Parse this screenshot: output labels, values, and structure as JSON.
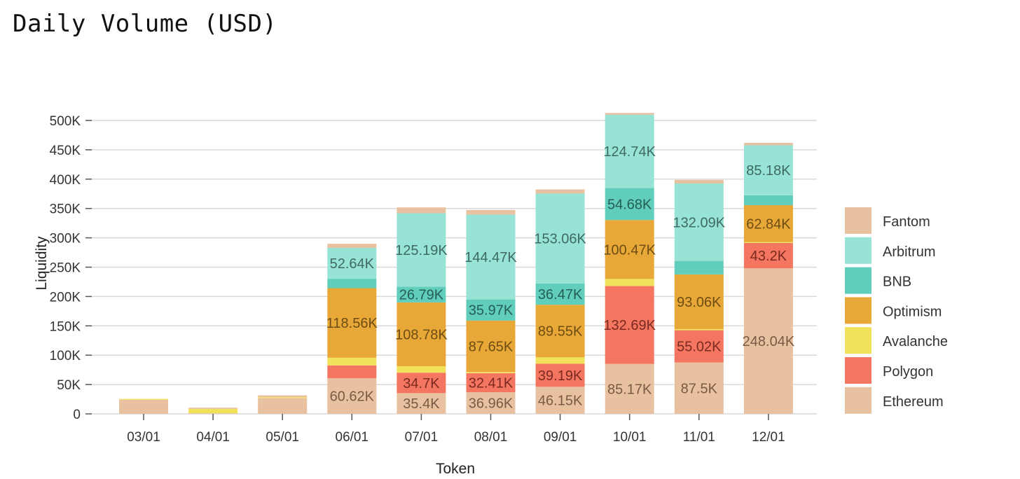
{
  "chart_data": {
    "type": "bar",
    "stacked": true,
    "title": "Daily Volume (USD)",
    "xlabel": "Token",
    "ylabel": "Liquidity",
    "ylim": [
      0,
      500000
    ],
    "yticks": [
      0,
      50000,
      100000,
      150000,
      200000,
      250000,
      300000,
      350000,
      400000,
      450000,
      500000
    ],
    "ytick_labels": [
      "0",
      "50K",
      "100K",
      "150K",
      "200K",
      "250K",
      "300K",
      "350K",
      "400K",
      "450K",
      "500K"
    ],
    "grid": true,
    "legend_position": "right",
    "categories": [
      "03/01",
      "04/01",
      "05/01",
      "06/01",
      "07/01",
      "08/01",
      "09/01",
      "10/01",
      "11/01",
      "12/01"
    ],
    "series": [
      {
        "name": "Ethereum",
        "color": "#E8C1A0",
        "label_color": "#7a5a44",
        "values": [
          24000,
          1000,
          27000,
          60620,
          35400,
          36960,
          46150,
          85170,
          87500,
          248040
        ],
        "labels": [
          null,
          null,
          null,
          "60.62K",
          "35.4K",
          "36.96K",
          "46.15K",
          "85.17K",
          "87.5K",
          "248.04K"
        ]
      },
      {
        "name": "Polygon",
        "color": "#F47560",
        "label_color": "#7a2a20",
        "values": [
          0,
          0,
          0,
          22000,
          34700,
          32410,
          39190,
          132690,
          55020,
          43200
        ],
        "labels": [
          null,
          null,
          null,
          null,
          "34.7K",
          "32.41K",
          "39.19K",
          "132.69K",
          "55.02K",
          "43.2K"
        ]
      },
      {
        "name": "Avalanche",
        "color": "#F1E15B",
        "label_color": "#6b6320",
        "values": [
          1500,
          7500,
          1500,
          13000,
          11000,
          2000,
          11000,
          12000,
          2000,
          1500
        ],
        "labels": [
          null,
          null,
          null,
          null,
          null,
          null,
          null,
          null,
          null,
          null
        ]
      },
      {
        "name": "Optimism",
        "color": "#E8A838",
        "label_color": "#6e4d14",
        "values": [
          0,
          0,
          0,
          118560,
          108780,
          87650,
          89550,
          100470,
          93060,
          62840
        ],
        "labels": [
          null,
          null,
          null,
          "118.56K",
          "108.78K",
          "87.65K",
          "89.55K",
          "100.47K",
          "93.06K",
          "62.84K"
        ]
      },
      {
        "name": "BNB",
        "color": "#61CDBB",
        "label_color": "#245e55",
        "values": [
          0,
          0,
          0,
          16000,
          26790,
          35970,
          36470,
          54680,
          23000,
          17000
        ],
        "labels": [
          null,
          null,
          null,
          null,
          "26.79K",
          "35.97K",
          "36.47K",
          "54.68K",
          null,
          null
        ]
      },
      {
        "name": "Arbitrum",
        "color": "#97E3D5",
        "label_color": "#3e6a63",
        "values": [
          0,
          0,
          0,
          52640,
          125190,
          144470,
          153060,
          124740,
          132090,
          85180
        ],
        "labels": [
          null,
          null,
          null,
          "52.64K",
          "125.19K",
          "144.47K",
          "153.06K",
          "124.74K",
          "132.09K",
          "85.18K"
        ]
      },
      {
        "name": "Fantom",
        "color": "#E8C1A0",
        "label_color": "#7a5a44",
        "values": [
          0,
          2000,
          3000,
          7000,
          10000,
          8000,
          7000,
          3000,
          6000,
          4000
        ],
        "labels": [
          null,
          null,
          null,
          null,
          null,
          null,
          null,
          null,
          null,
          null
        ]
      }
    ],
    "legend_order": [
      "Fantom",
      "Arbitrum",
      "BNB",
      "Optimism",
      "Avalanche",
      "Polygon",
      "Ethereum"
    ]
  }
}
